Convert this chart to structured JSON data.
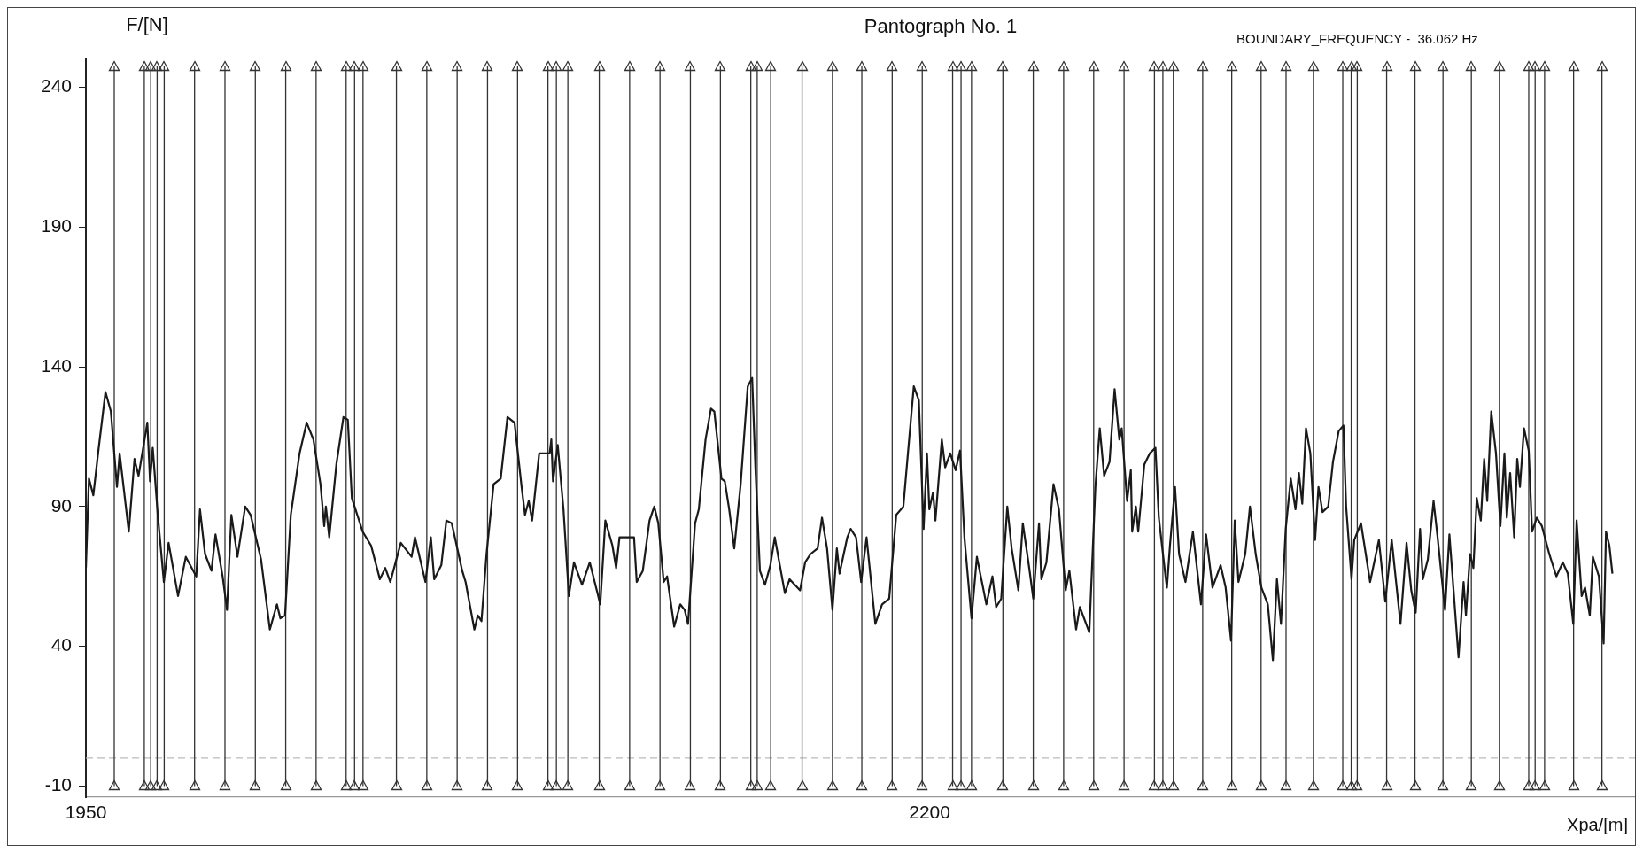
{
  "chart_data": {
    "type": "line",
    "title": "Pantograph No. 1",
    "xlabel": "Xpa/[m]",
    "ylabel": "F/[N]",
    "annotations": [
      "BOUNDARY_FREQUENCY -  36.062 Hz"
    ],
    "xlim": [
      1950,
      2409
    ],
    "xticks": [
      1950,
      2200
    ],
    "ylim": [
      -14,
      250
    ],
    "yticks": [
      -10,
      40,
      90,
      140,
      190,
      240
    ],
    "grid": false,
    "legend": false,
    "marker": "none",
    "line_style": "solid",
    "ref_lines": [
      {
        "axis": "y",
        "value": 0,
        "color": "#bbbbbb",
        "line_style": "dashed"
      },
      {
        "axis": "x",
        "value": 1958.4
      },
      {
        "axis": "x",
        "value": 1967.3
      },
      {
        "axis": "x",
        "value": 1969.2
      },
      {
        "axis": "x",
        "value": 1971.1
      },
      {
        "axis": "x",
        "value": 1973.2
      },
      {
        "axis": "x",
        "value": 1982.2
      },
      {
        "axis": "x",
        "value": 1991.2
      },
      {
        "axis": "x",
        "value": 2000.2
      },
      {
        "axis": "x",
        "value": 2009.2
      },
      {
        "axis": "x",
        "value": 2018.2
      },
      {
        "axis": "x",
        "value": 2027.1
      },
      {
        "axis": "x",
        "value": 2029.6
      },
      {
        "axis": "x",
        "value": 2032.1
      },
      {
        "axis": "x",
        "value": 2042.0
      },
      {
        "axis": "x",
        "value": 2051.0
      },
      {
        "axis": "x",
        "value": 2060.0
      },
      {
        "axis": "x",
        "value": 2069.0
      },
      {
        "axis": "x",
        "value": 2077.9
      },
      {
        "axis": "x",
        "value": 2086.9
      },
      {
        "axis": "x",
        "value": 2089.4
      },
      {
        "axis": "x",
        "value": 2092.8
      },
      {
        "axis": "x",
        "value": 2102.1
      },
      {
        "axis": "x",
        "value": 2111.1
      },
      {
        "axis": "x",
        "value": 2120.1
      },
      {
        "axis": "x",
        "value": 2129.1
      },
      {
        "axis": "x",
        "value": 2138.0
      },
      {
        "axis": "x",
        "value": 2147.0
      },
      {
        "axis": "x",
        "value": 2148.9
      },
      {
        "axis": "x",
        "value": 2152.9
      },
      {
        "axis": "x",
        "value": 2162.2
      },
      {
        "axis": "x",
        "value": 2171.2
      },
      {
        "axis": "x",
        "value": 2179.9
      },
      {
        "axis": "x",
        "value": 2188.9
      },
      {
        "axis": "x",
        "value": 2197.8
      },
      {
        "axis": "x",
        "value": 2206.8
      },
      {
        "axis": "x",
        "value": 2209.3
      },
      {
        "axis": "x",
        "value": 2212.4
      },
      {
        "axis": "x",
        "value": 2221.7
      },
      {
        "axis": "x",
        "value": 2230.7
      },
      {
        "axis": "x",
        "value": 2239.7
      },
      {
        "axis": "x",
        "value": 2248.6
      },
      {
        "axis": "x",
        "value": 2257.6
      },
      {
        "axis": "x",
        "value": 2266.6
      },
      {
        "axis": "x",
        "value": 2269.1
      },
      {
        "axis": "x",
        "value": 2272.2
      },
      {
        "axis": "x",
        "value": 2280.9
      },
      {
        "axis": "x",
        "value": 2289.5
      },
      {
        "axis": "x",
        "value": 2298.2
      },
      {
        "axis": "x",
        "value": 2305.6
      },
      {
        "axis": "x",
        "value": 2313.7
      },
      {
        "axis": "x",
        "value": 2322.4
      },
      {
        "axis": "x",
        "value": 2324.9
      },
      {
        "axis": "x",
        "value": 2326.7
      },
      {
        "axis": "x",
        "value": 2335.4
      },
      {
        "axis": "x",
        "value": 2343.8
      },
      {
        "axis": "x",
        "value": 2352.1
      },
      {
        "axis": "x",
        "value": 2360.5
      },
      {
        "axis": "x",
        "value": 2368.8
      },
      {
        "axis": "x",
        "value": 2377.5
      },
      {
        "axis": "x",
        "value": 2379.4
      },
      {
        "axis": "x",
        "value": 2382.2
      },
      {
        "axis": "x",
        "value": 2390.8
      },
      {
        "axis": "x",
        "value": 2399.2
      }
    ],
    "series": [
      {
        "color": "#1a1a1a",
        "x": [
          1950,
          1950.9,
          1952.2,
          1953.7,
          1955.8,
          1957.4,
          1959.2,
          1960.0,
          1962.7,
          1964.4,
          1965.6,
          1968.2,
          1969.0,
          1969.8,
          1971.3,
          1973.1,
          1974.5,
          1977.3,
          1979.6,
          1982.7,
          1983.8,
          1985.3,
          1987.2,
          1988.4,
          1990.5,
          1991.8,
          1993.1,
          1994.9,
          1997.2,
          1998.8,
          2001.9,
          2004.5,
          2006.6,
          2007.6,
          2009.0,
          2010.7,
          2013.3,
          2015.4,
          2017.4,
          2019.5,
          2020.6,
          2021.1,
          2022.1,
          2024.2,
          2026.3,
          2027.6,
          2028.8,
          2032.0,
          2034.5,
          2037.1,
          2038.7,
          2040.2,
          2043.3,
          2046.5,
          2047.5,
          2050.6,
          2052.2,
          2053.2,
          2055.3,
          2056.8,
          2058.4,
          2061.5,
          2062.5,
          2065.1,
          2066.1,
          2067.2,
          2068.7,
          2070.8,
          2072.9,
          2074.9,
          2077.0,
          2079.1,
          2080.1,
          2081.2,
          2082.2,
          2084.3,
          2087.4,
          2087.9,
          2088.4,
          2089.8,
          2091.5,
          2093.1,
          2094.6,
          2097.0,
          2099.3,
          2102.4,
          2103.9,
          2106.0,
          2107.1,
          2108.1,
          2112.4,
          2113.2,
          2115.0,
          2117.0,
          2118.4,
          2119.6,
          2121.2,
          2122.2,
          2124.3,
          2126.1,
          2127.4,
          2128.4,
          2130.5,
          2131.6,
          2133.6,
          2135.2,
          2136.2,
          2138.3,
          2139.3,
          2140.6,
          2142.1,
          2144.0,
          2146.1,
          2147.4,
          2148.4,
          2149.7,
          2151.2,
          2152.8,
          2154.1,
          2157.1,
          2158.5,
          2161.6,
          2163.1,
          2164.7,
          2166.8,
          2168.1,
          2169.6,
          2171.2,
          2172.5,
          2173.3,
          2175.6,
          2176.6,
          2178.2,
          2179.7,
          2181.3,
          2183.9,
          2185.9,
          2188.0,
          2190.1,
          2192.2,
          2193.7,
          2195.3,
          2196.8,
          2198.2,
          2199.2,
          2199.9,
          2201.0,
          2201.7,
          2203.6,
          2204.6,
          2206.1,
          2207.7,
          2209.0,
          2210.3,
          2212.4,
          2214.0,
          2216.8,
          2218.6,
          2219.7,
          2221.2,
          2223.0,
          2224.3,
          2226.3,
          2227.6,
          2229.5,
          2230.7,
          2232.4,
          2233.1,
          2234.6,
          2236.7,
          2238.3,
          2240.3,
          2241.4,
          2243.4,
          2244.5,
          2247.3,
          2249.1,
          2250.4,
          2251.7,
          2253.3,
          2254.8,
          2256.2,
          2256.9,
          2258.5,
          2259.6,
          2260.0,
          2261.1,
          2261.8,
          2263.6,
          2265.2,
          2266.9,
          2267.9,
          2269.6,
          2270.3,
          2271.2,
          2272.7,
          2273.9,
          2275.8,
          2278.0,
          2280.4,
          2281.9,
          2283.8,
          2286.2,
          2287.7,
          2289.3,
          2290.4,
          2291.5,
          2293.5,
          2294.9,
          2296.6,
          2298.3,
          2300.2,
          2301.7,
          2302.9,
          2304.1,
          2305.5,
          2307.0,
          2308.4,
          2309.4,
          2310.4,
          2311.5,
          2312.8,
          2314.2,
          2315.2,
          2316.4,
          2318.1,
          2319.5,
          2321.2,
          2322.6,
          2323.4,
          2325.0,
          2325.8,
          2327.8,
          2330.5,
          2333.1,
          2335.0,
          2336.9,
          2339.5,
          2341.3,
          2342.7,
          2344.0,
          2345.3,
          2346.1,
          2347.6,
          2349.3,
          2350.5,
          2352.7,
          2354.0,
          2356.7,
          2358.2,
          2358.9,
          2360.1,
          2361.1,
          2362.1,
          2363.3,
          2364.3,
          2365.2,
          2366.4,
          2367.8,
          2369.1,
          2370.3,
          2371.0,
          2372.0,
          2373.2,
          2374.1,
          2374.9,
          2376.1,
          2377.5,
          2378.5,
          2379.9,
          2381.4,
          2383.6,
          2385.7,
          2387.6,
          2389.1,
          2390.7,
          2391.7,
          2393.2,
          2394.2,
          2395.6,
          2396.5,
          2398.3,
          2399.7,
          2400.4,
          2401.4,
          2402.3
        ],
        "values": [
          68,
          100,
          94,
          110,
          131,
          124,
          97,
          109,
          81,
          107,
          101,
          120,
          99,
          111,
          87,
          63,
          77,
          58,
          72,
          65,
          89,
          73,
          67,
          80,
          65,
          53,
          87,
          72,
          90,
          87,
          71,
          46,
          55,
          50,
          51,
          87,
          109,
          120,
          114,
          98,
          83,
          90,
          79,
          105,
          122,
          121,
          93,
          81,
          76,
          64,
          68,
          63,
          77,
          72,
          79,
          63,
          79,
          64,
          69,
          85,
          84,
          67,
          63,
          46,
          51,
          49,
          73,
          98,
          100,
          122,
          120,
          97,
          87,
          92,
          85,
          109,
          109,
          114,
          99,
          112,
          89,
          58,
          70,
          62,
          70,
          55,
          85,
          76,
          68,
          79,
          79,
          63,
          67,
          85,
          90,
          84,
          63,
          65,
          47,
          55,
          53,
          48,
          84,
          89,
          114,
          125,
          124,
          100,
          99,
          89,
          75,
          98,
          133,
          136,
          103,
          67,
          62,
          69,
          79,
          59,
          64,
          60,
          70,
          73,
          75,
          86,
          75,
          53,
          75,
          66,
          79,
          82,
          79,
          63,
          79,
          48,
          55,
          57,
          87,
          90,
          111,
          133,
          128,
          82,
          109,
          89,
          95,
          85,
          114,
          104,
          109,
          103,
          110,
          79,
          50,
          72,
          55,
          65,
          54,
          57,
          90,
          75,
          60,
          84,
          68,
          57,
          84,
          64,
          70,
          98,
          89,
          60,
          67,
          46,
          54,
          45,
          97,
          118,
          101,
          106,
          132,
          114,
          118,
          92,
          103,
          81,
          90,
          81,
          105,
          109,
          111,
          86,
          68,
          61,
          76,
          97,
          73,
          63,
          81,
          55,
          80,
          61,
          69,
          61,
          42,
          85,
          63,
          73,
          90,
          73,
          61,
          55,
          35,
          64,
          48,
          82,
          100,
          89,
          102,
          91,
          118,
          109,
          78,
          97,
          88,
          90,
          106,
          117,
          119,
          90,
          64,
          78,
          84,
          63,
          78,
          56,
          78,
          48,
          77,
          60,
          52,
          82,
          64,
          71,
          92,
          79,
          53,
          80,
          36,
          63,
          51,
          73,
          68,
          93,
          85,
          107,
          92,
          124,
          109,
          83,
          109,
          86,
          102,
          79,
          107,
          97,
          118,
          110,
          81,
          86,
          83,
          73,
          65,
          70,
          66,
          48,
          85,
          58,
          61,
          51,
          72,
          65,
          41,
          81,
          76,
          66
        ]
      }
    ]
  }
}
